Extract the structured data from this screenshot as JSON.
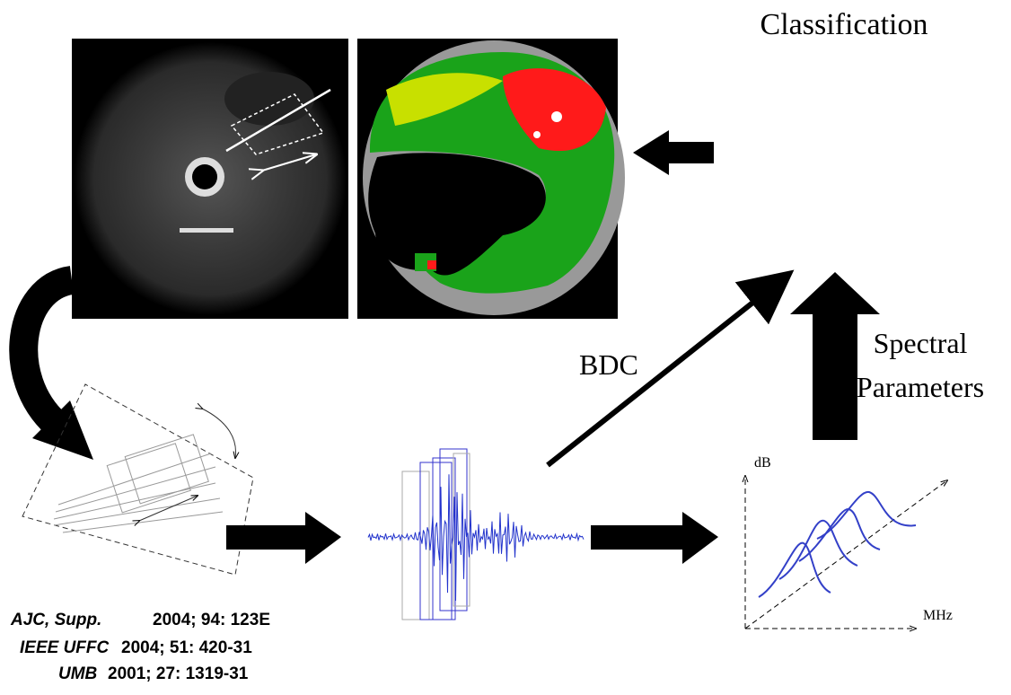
{
  "labels": {
    "classification": "Classification",
    "bdc": "BDC",
    "spectral_parameters": [
      "Spectral",
      "Parameters"
    ]
  },
  "spectrum_axes": {
    "y_label": "dB",
    "x_label": "MHz"
  },
  "references": [
    {
      "journal": "AJC, Supp.",
      "citation": "2004; 94: 123E"
    },
    {
      "journal": "IEEE UFFC",
      "citation": "2004; 51: 420-31"
    },
    {
      "journal": "UMB",
      "citation": "2001; 27: 1319-31"
    }
  ]
}
